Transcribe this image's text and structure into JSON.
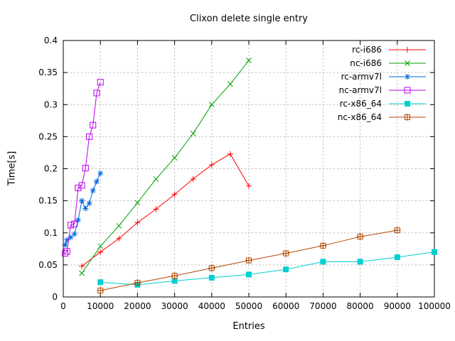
{
  "chart_data": {
    "type": "line",
    "title": "Clixon delete single entry",
    "xlabel": "Entries",
    "ylabel": "Time[s]",
    "xlim": [
      0,
      100000
    ],
    "ylim": [
      0,
      0.4
    ],
    "grid": true,
    "legend_position": "top-right-inside",
    "background_color": "#ffffff",
    "grid_color": "#b8b8b8",
    "axis_color": "#000000",
    "x_ticks": {
      "values": [
        0,
        10000,
        20000,
        30000,
        40000,
        50000,
        60000,
        70000,
        80000,
        90000,
        100000
      ],
      "labels": [
        "0",
        "10000",
        "20000",
        "30000",
        "40000",
        "50000",
        "60000",
        "70000",
        "80000",
        "90000",
        "100000"
      ]
    },
    "y_ticks": {
      "values": [
        0,
        0.05,
        0.1,
        0.15,
        0.2,
        0.25,
        0.3,
        0.35,
        0.4
      ],
      "labels": [
        "0",
        "0.05",
        "0.1",
        "0.15",
        "0.2",
        "0.25",
        "0.3",
        "0.35",
        "0.4"
      ]
    },
    "series": [
      {
        "name": "rc-i686",
        "color": "#ff0000",
        "marker": "plus",
        "x": [
          5000,
          10000,
          15000,
          20000,
          25000,
          30000,
          35000,
          40000,
          45000,
          50000
        ],
        "y": [
          0.048,
          0.07,
          0.091,
          0.116,
          0.137,
          0.16,
          0.184,
          0.206,
          0.223,
          0.173
        ]
      },
      {
        "name": "nc-i686",
        "color": "#00a000",
        "marker": "cross",
        "x": [
          5000,
          10000,
          15000,
          20000,
          25000,
          30000,
          35000,
          40000,
          45000,
          50000
        ],
        "y": [
          0.037,
          0.079,
          0.111,
          0.147,
          0.184,
          0.217,
          0.255,
          0.3,
          0.332,
          0.369
        ]
      },
      {
        "name": "rc-armv7l",
        "color": "#0066dd",
        "marker": "asterisk",
        "x": [
          500,
          1000,
          2000,
          3000,
          4000,
          5000,
          6000,
          7000,
          8000,
          9000,
          10000
        ],
        "y": [
          0.081,
          0.089,
          0.093,
          0.098,
          0.12,
          0.15,
          0.138,
          0.146,
          0.166,
          0.18,
          0.193
        ]
      },
      {
        "name": "nc-armv7l",
        "color": "#bb00ee",
        "marker": "open-square",
        "x": [
          500,
          1000,
          2000,
          3000,
          4000,
          5000,
          6000,
          7000,
          8000,
          9000,
          10000
        ],
        "y": [
          0.068,
          0.071,
          0.112,
          0.114,
          0.17,
          0.174,
          0.201,
          0.25,
          0.268,
          0.318,
          0.335
        ]
      },
      {
        "name": "rc-x86_64",
        "color": "#00d0d0",
        "marker": "filled-square",
        "x": [
          10000,
          20000,
          30000,
          40000,
          50000,
          60000,
          70000,
          80000,
          90000,
          100000
        ],
        "y": [
          0.023,
          0.019,
          0.025,
          0.03,
          0.035,
          0.043,
          0.055,
          0.055,
          0.062,
          0.07
        ]
      },
      {
        "name": "nc-x86_64",
        "color": "#b34700",
        "marker": "open-square-plus",
        "x": [
          10000,
          20000,
          30000,
          40000,
          50000,
          60000,
          70000,
          80000,
          90000
        ],
        "y": [
          0.01,
          0.022,
          0.033,
          0.045,
          0.057,
          0.068,
          0.08,
          0.094,
          0.104
        ]
      }
    ]
  }
}
